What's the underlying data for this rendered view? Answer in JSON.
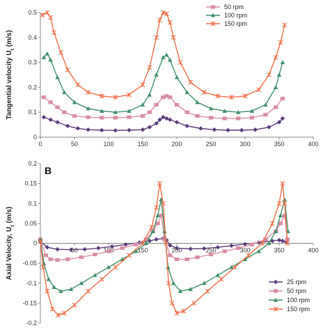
{
  "chart_data": [
    {
      "type": "line",
      "panel_label": "",
      "ylabel": "Tangential velocity U",
      "ylabel_sub": "t",
      "ylabel_unit": " (m/s)",
      "xlim": [
        0,
        400
      ],
      "ylim": [
        0,
        0.5
      ],
      "xticks": [
        0,
        50,
        100,
        150,
        200,
        250,
        300,
        350,
        400
      ],
      "yticks": [
        0,
        0.1,
        0.2,
        0.3,
        0.4,
        0.5
      ],
      "grid": false,
      "legend_position": "top-right",
      "series": [
        {
          "name": "50 rpm",
          "color": "#d98fa5",
          "marker": "square",
          "x": [
            5,
            15,
            25,
            35,
            50,
            70,
            90,
            110,
            130,
            150,
            160,
            170,
            180,
            185,
            190,
            200,
            215,
            230,
            250,
            270,
            290,
            310,
            330,
            345,
            355
          ],
          "y": [
            0.16,
            0.14,
            0.12,
            0.1,
            0.085,
            0.08,
            0.078,
            0.078,
            0.08,
            0.085,
            0.1,
            0.13,
            0.16,
            0.165,
            0.16,
            0.13,
            0.1,
            0.085,
            0.078,
            0.075,
            0.075,
            0.078,
            0.09,
            0.12,
            0.155
          ]
        },
        {
          "name": "100 rpm",
          "color": "#3f8f6a",
          "marker": "triangle",
          "x": [
            5,
            10,
            15,
            25,
            35,
            50,
            70,
            90,
            110,
            130,
            150,
            160,
            170,
            180,
            185,
            190,
            200,
            215,
            230,
            250,
            270,
            290,
            310,
            330,
            345,
            350,
            355
          ],
          "y": [
            0.32,
            0.335,
            0.31,
            0.24,
            0.18,
            0.14,
            0.115,
            0.105,
            0.1,
            0.105,
            0.13,
            0.17,
            0.25,
            0.32,
            0.33,
            0.31,
            0.24,
            0.18,
            0.14,
            0.115,
            0.105,
            0.1,
            0.105,
            0.13,
            0.2,
            0.25,
            0.3
          ]
        },
        {
          "name": "150 rpm",
          "color": "#ef6e4a",
          "marker": "star",
          "x": [
            3,
            10,
            15,
            20,
            30,
            40,
            55,
            70,
            90,
            110,
            130,
            150,
            160,
            170,
            175,
            180,
            185,
            190,
            195,
            205,
            220,
            240,
            260,
            280,
            300,
            320,
            335,
            345,
            352,
            358
          ],
          "y": [
            0.49,
            0.5,
            0.48,
            0.42,
            0.34,
            0.27,
            0.21,
            0.18,
            0.165,
            0.16,
            0.17,
            0.21,
            0.28,
            0.4,
            0.47,
            0.5,
            0.495,
            0.46,
            0.4,
            0.3,
            0.22,
            0.18,
            0.165,
            0.16,
            0.165,
            0.19,
            0.25,
            0.32,
            0.38,
            0.45
          ]
        },
        {
          "name": "25 rpm",
          "color": "#5c3d7a",
          "marker": "diamond",
          "show_in_legend": false,
          "x": [
            5,
            15,
            25,
            40,
            55,
            70,
            90,
            110,
            130,
            150,
            160,
            170,
            175,
            180,
            185,
            190,
            200,
            215,
            235,
            255,
            275,
            295,
            315,
            335,
            350,
            355
          ],
          "y": [
            0.08,
            0.07,
            0.06,
            0.045,
            0.035,
            0.03,
            0.028,
            0.027,
            0.028,
            0.03,
            0.04,
            0.055,
            0.07,
            0.08,
            0.075,
            0.07,
            0.06,
            0.045,
            0.035,
            0.03,
            0.028,
            0.028,
            0.03,
            0.04,
            0.06,
            0.075
          ]
        }
      ]
    },
    {
      "type": "line",
      "panel_label": "B",
      "ylabel": "Axial Velocity, U",
      "ylabel_sub": "t",
      "ylabel_unit": " (m/s)",
      "xlim": [
        0,
        400
      ],
      "ylim": [
        -0.2,
        0.2
      ],
      "xticks": [
        0,
        50,
        100,
        150,
        200,
        250,
        300,
        350,
        400
      ],
      "yticks": [
        -0.2,
        -0.15,
        -0.1,
        -0.05,
        0,
        0.05,
        0.1,
        0.15,
        0.2
      ],
      "grid": false,
      "legend_position": "bottom-right",
      "series": [
        {
          "name": "25 rpm",
          "color": "#5c3d7a",
          "marker": "diamond",
          "x": [
            0,
            10,
            25,
            45,
            65,
            85,
            105,
            125,
            145,
            160,
            170,
            180,
            185,
            190,
            200,
            220,
            240,
            260,
            280,
            300,
            320,
            340,
            350,
            355,
            360
          ],
          "y": [
            0.005,
            -0.01,
            -0.015,
            -0.016,
            -0.015,
            -0.012,
            -0.008,
            -0.003,
            0.002,
            0.006,
            0.01,
            0.012,
            0.008,
            -0.005,
            -0.012,
            -0.014,
            -0.013,
            -0.01,
            -0.006,
            -0.002,
            0.002,
            0.006,
            0.008,
            0.006,
            0.004
          ]
        },
        {
          "name": "50 rpm",
          "color": "#d98fa5",
          "marker": "square",
          "x": [
            0,
            8,
            15,
            25,
            40,
            60,
            80,
            100,
            120,
            140,
            155,
            165,
            172,
            177,
            182,
            190,
            200,
            215,
            230,
            250,
            270,
            290,
            310,
            330,
            345,
            352,
            358,
            362
          ],
          "y": [
            0.01,
            -0.03,
            -0.04,
            -0.042,
            -0.04,
            -0.035,
            -0.028,
            -0.02,
            -0.012,
            -0.003,
            0.01,
            0.03,
            0.05,
            0.07,
            0.01,
            -0.03,
            -0.04,
            -0.04,
            -0.035,
            -0.028,
            -0.02,
            -0.012,
            -0.003,
            0.01,
            0.03,
            0.05,
            0.07,
            0.01
          ]
        },
        {
          "name": "100 rpm",
          "color": "#3f8f6a",
          "marker": "triangle",
          "x": [
            0,
            5,
            12,
            20,
            30,
            45,
            60,
            80,
            100,
            120,
            140,
            155,
            165,
            172,
            177,
            182,
            187,
            195,
            205,
            220,
            240,
            260,
            280,
            300,
            320,
            335,
            345,
            352,
            358,
            363
          ],
          "y": [
            0.01,
            -0.05,
            -0.09,
            -0.11,
            -0.12,
            -0.115,
            -0.1,
            -0.08,
            -0.06,
            -0.04,
            -0.02,
            0.0,
            0.03,
            0.07,
            0.11,
            0.03,
            -0.06,
            -0.1,
            -0.12,
            -0.115,
            -0.1,
            -0.08,
            -0.06,
            -0.04,
            -0.02,
            0.0,
            0.03,
            0.07,
            0.11,
            0.03
          ]
        },
        {
          "name": "150 rpm",
          "color": "#ef6e4a",
          "marker": "star",
          "x": [
            0,
            4,
            10,
            18,
            26,
            35,
            50,
            70,
            90,
            110,
            130,
            150,
            163,
            170,
            175,
            180,
            184,
            188,
            193,
            200,
            210,
            225,
            245,
            265,
            285,
            305,
            325,
            340,
            350,
            355,
            358,
            362
          ],
          "y": [
            0.005,
            -0.06,
            -0.12,
            -0.165,
            -0.18,
            -0.175,
            -0.155,
            -0.12,
            -0.09,
            -0.06,
            -0.03,
            0.0,
            0.04,
            0.09,
            0.15,
            0.1,
            0.0,
            -0.1,
            -0.15,
            -0.175,
            -0.17,
            -0.15,
            -0.12,
            -0.09,
            -0.06,
            -0.03,
            0.0,
            0.05,
            0.1,
            0.15,
            0.1,
            0.0
          ]
        }
      ]
    }
  ]
}
